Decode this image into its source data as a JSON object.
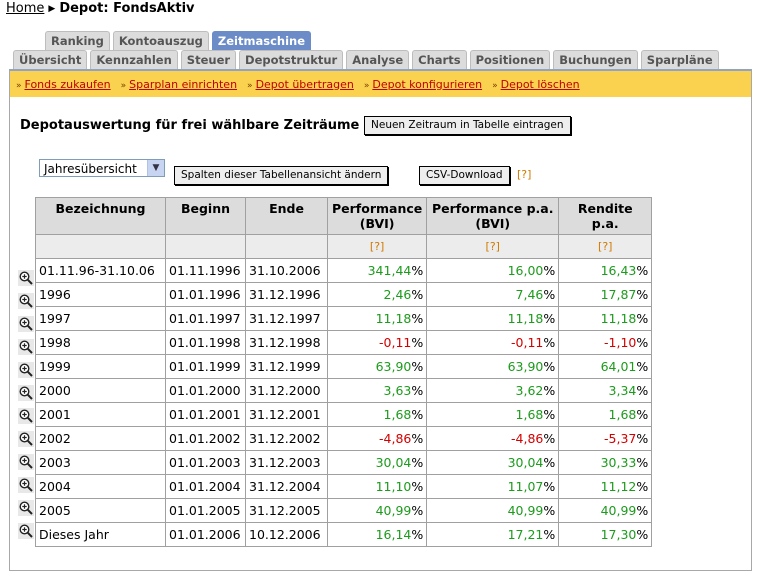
{
  "breadcrumb": {
    "home": "Home",
    "current": "Depot: FondsAktiv"
  },
  "tabs_row1": [
    "Ranking",
    "Kontoauszug",
    "Zeitmaschine"
  ],
  "tabs_row2": [
    "Übersicht",
    "Kennzahlen",
    "Steuer",
    "Depotstruktur",
    "Analyse",
    "Charts",
    "Positionen",
    "Buchungen",
    "Sparpläne"
  ],
  "active_tab": "Zeitmaschine",
  "actions": [
    "Fonds zukaufen",
    "Sparplan einrichten",
    "Depot übertragen",
    "Depot konfigurieren",
    "Depot löschen"
  ],
  "heading": "Depotauswertung für frei wählbare Zeiträume",
  "buttons": {
    "new_period": "Neuen Zeitraum in Tabelle eintragen",
    "change_columns": "Spalten dieser Tabellenansicht ändern",
    "csv": "CSV-Download"
  },
  "view_select": {
    "value": "Jahresübersicht"
  },
  "help_marker": "[?]",
  "table": {
    "headers": [
      "Bezeichnung",
      "Beginn",
      "Ende",
      "Performance (BVI)",
      "Performance p.a. (BVI)",
      "Rendite p.a."
    ],
    "rows": [
      [
        "01.11.96-31.10.06",
        "01.11.1996",
        "31.10.2006",
        "341,44",
        "16,00",
        "16,43"
      ],
      [
        "1996",
        "01.01.1996",
        "31.12.1996",
        "2,46",
        "7,46",
        "17,87"
      ],
      [
        "1997",
        "01.01.1997",
        "31.12.1997",
        "11,18",
        "11,18",
        "11,18"
      ],
      [
        "1998",
        "01.01.1998",
        "31.12.1998",
        "-0,11",
        "-0,11",
        "-1,10"
      ],
      [
        "1999",
        "01.01.1999",
        "31.12.1999",
        "63,90",
        "63,90",
        "64,01"
      ],
      [
        "2000",
        "01.01.2000",
        "31.12.2000",
        "3,63",
        "3,62",
        "3,34"
      ],
      [
        "2001",
        "01.01.2001",
        "31.12.2001",
        "1,68",
        "1,68",
        "1,68"
      ],
      [
        "2002",
        "01.01.2002",
        "31.12.2002",
        "-4,86",
        "-4,86",
        "-5,37"
      ],
      [
        "2003",
        "01.01.2003",
        "31.12.2003",
        "30,04",
        "30,04",
        "30,33"
      ],
      [
        "2004",
        "01.01.2004",
        "31.12.2004",
        "11,10",
        "11,07",
        "11,12"
      ],
      [
        "2005",
        "01.01.2005",
        "31.12.2005",
        "40,99",
        "40,99",
        "40,99"
      ],
      [
        "Dieses Jahr",
        "01.01.2006",
        "10.12.2006",
        "16,14",
        "17,21",
        "17,30"
      ]
    ]
  },
  "colors": {
    "positive": "#1c9b1c",
    "negative": "#d40000",
    "action_bar": "#fbd250",
    "active_tab": "#6b8cc7"
  }
}
